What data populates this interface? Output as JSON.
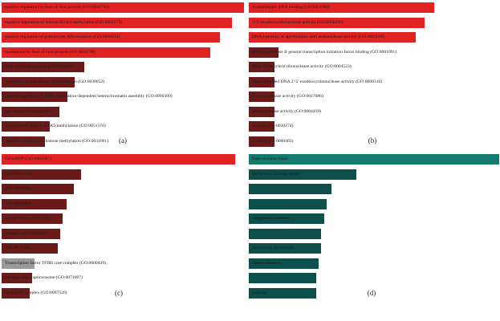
{
  "chart_data": [
    {
      "type": "bar",
      "orientation": "horizontal",
      "panel_label": "(a)",
      "categories": [
        "positive regulation by host of viral process (GO:0044794)",
        "negative regulation of histone H3-K9 methylation (GO:0051573)",
        "positive regulation of granulocyte differentiation (GO:0030854)",
        "modulation by host of viral process (GO:0044788)",
        "fatty metabolic process (GO:0006631)",
        "regulation of granulocyte differentiation (GO:0030852)",
        "positive regulation of DNA methylation-dependent heterochromatin assembly (GO:0090309)",
        "gap-filling (GO:0006287)",
        "regulation of histone H3-K9 methylation (GO:0051570)",
        "negative regulation of histone methylation (GO:0031061)"
      ],
      "values": [
        1.0,
        0.95,
        0.9,
        0.86,
        0.34,
        0.3,
        0.27,
        0.24,
        0.2,
        0.18
      ],
      "colors": [
        "#e02222",
        "#e02222",
        "#e02222",
        "#e02222",
        "#6b1a1a",
        "#6b1a1a",
        "#6b1a1a",
        "#6b1a1a",
        "#6b1a1a",
        "#6b1a1a"
      ]
    },
    {
      "type": "bar",
      "orientation": "horizontal",
      "panel_label": "(b)",
      "categories": [
        "G-quadruplex DNA binding (GO:0051880)",
        "3'-5'-exodeoxyribonuclease activity (GO:0008296)",
        "DNA-(apurinic or apyrimidinic site) endonuclease activity (GO:0003906)",
        "RNA polymerase II general transcription initiation factor binding (GO:0001091)",
        "RNA-DNA hybrid ribonuclease activity (GO:0004523)",
        "single-stranded DNA 3'-5' exodeoxyribonuclease activity (GO:0008310)",
        "monooxygenase activity (GO:0017086)",
        "dehydrogenase activity (GO:0004459)",
        "binding (GO:0030274)",
        "binding (GO:0000403)"
      ],
      "values": [
        1.0,
        0.95,
        0.9,
        0.16,
        0.14,
        0.14,
        0.14,
        0.14,
        0.14,
        0.14
      ],
      "colors": [
        "#e02222",
        "#e02222",
        "#e02222",
        "#6b1a1a",
        "#6b1a1a",
        "#6b1a1a",
        "#6b1a1a",
        "#6b1a1a",
        "#6b1a1a",
        "#6b1a1a"
      ]
    },
    {
      "type": "bar",
      "orientation": "horizontal",
      "panel_label": "(c)",
      "categories": [
        "U4 snRNP (GO:0005687)",
        "(GO:0097504)",
        "(GO:0097486)",
        "(GO:0005683)",
        "complex (GO:0071339)",
        "complex (GO:0044665)",
        "(GO:0031906)",
        "Transcription factor TFIIH core complex (GO:0000439)",
        "catalytic step 2 spliceosome (GO:0071007)",
        "tri-snRNP complex (GO:0097526)"
      ],
      "values": [
        1.0,
        0.34,
        0.31,
        0.28,
        0.26,
        0.25,
        0.24,
        0.14,
        0.13,
        0.12
      ],
      "colors": [
        "#e02222",
        "#6b1a1a",
        "#6b1a1a",
        "#6b1a1a",
        "#6b1a1a",
        "#6b1a1a",
        "#6b1a1a",
        "#9a9a9a",
        "#6b1a1a",
        "#6b1a1a"
      ]
    },
    {
      "type": "bar",
      "orientation": "horizontal",
      "panel_label": "(d)",
      "categories": [
        "Base excision repair",
        "Nucleotide excision repair",
        "",
        "",
        "coagulation cascades",
        "",
        "methionine metabolism",
        "aureus infection",
        "",
        "pathway"
      ],
      "values": [
        1.0,
        0.43,
        0.33,
        0.31,
        0.3,
        0.29,
        0.29,
        0.28,
        0.27,
        0.27
      ],
      "colors": [
        "#137a6e",
        "#0d4f4a",
        "#0d4f4a",
        "#0d4f4a",
        "#0d4f4a",
        "#0d4f4a",
        "#0d4f4a",
        "#0d4f4a",
        "#0d4f4a",
        "#0d4f4a"
      ]
    }
  ]
}
